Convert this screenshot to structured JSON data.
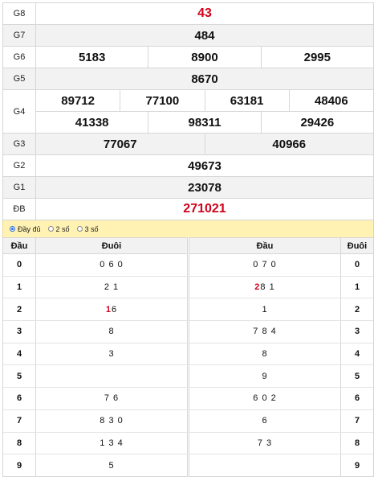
{
  "prizes": {
    "g8": {
      "label": "G8",
      "value": "43"
    },
    "g7": {
      "label": "G7",
      "value": "484"
    },
    "g6": {
      "label": "G6",
      "values": [
        "5183",
        "8900",
        "2995"
      ]
    },
    "g5": {
      "label": "G5",
      "value": "8670"
    },
    "g4": {
      "label": "G4",
      "row1": [
        "89712",
        "77100",
        "63181",
        "48406"
      ],
      "row2": [
        "41338",
        "98311",
        "29426"
      ]
    },
    "g3": {
      "label": "G3",
      "values": [
        "77067",
        "40966"
      ]
    },
    "g2": {
      "label": "G2",
      "value": "49673"
    },
    "g1": {
      "label": "G1",
      "value": "23078"
    },
    "db": {
      "label": "ĐB",
      "value": "271021"
    }
  },
  "options": {
    "full": "Đầy đủ",
    "two": "2 số",
    "three": "3 số"
  },
  "loto": {
    "left_headers": {
      "num": "Đầu",
      "digits": "Đuôi"
    },
    "right_headers": {
      "digits": "Đầu",
      "num": "Đuôi"
    },
    "left": [
      {
        "num": "0",
        "digits": "0 6 0"
      },
      {
        "num": "1",
        "digits": "2 1"
      },
      {
        "num": "2",
        "digits": "1 6",
        "red": "1"
      },
      {
        "num": "3",
        "digits": "8"
      },
      {
        "num": "4",
        "digits": "3"
      },
      {
        "num": "5",
        "digits": ""
      },
      {
        "num": "6",
        "digits": "7 6"
      },
      {
        "num": "7",
        "digits": "8 3 0"
      },
      {
        "num": "8",
        "digits": "1 3 4"
      },
      {
        "num": "9",
        "digits": "5"
      }
    ],
    "right": [
      {
        "num": "0",
        "digits": "0 7 0"
      },
      {
        "num": "1",
        "digits": "2 8 1",
        "red": "2"
      },
      {
        "num": "2",
        "digits": "1"
      },
      {
        "num": "3",
        "digits": "7 8 4"
      },
      {
        "num": "4",
        "digits": "8"
      },
      {
        "num": "5",
        "digits": "9"
      },
      {
        "num": "6",
        "digits": "6 0 2"
      },
      {
        "num": "7",
        "digits": "6"
      },
      {
        "num": "8",
        "digits": "7 3"
      },
      {
        "num": "9",
        "digits": ""
      }
    ]
  },
  "colors": {
    "accent_red": "#d0021b",
    "options_bg": "#fff2b3",
    "alt_row": "#f2f2f2"
  }
}
